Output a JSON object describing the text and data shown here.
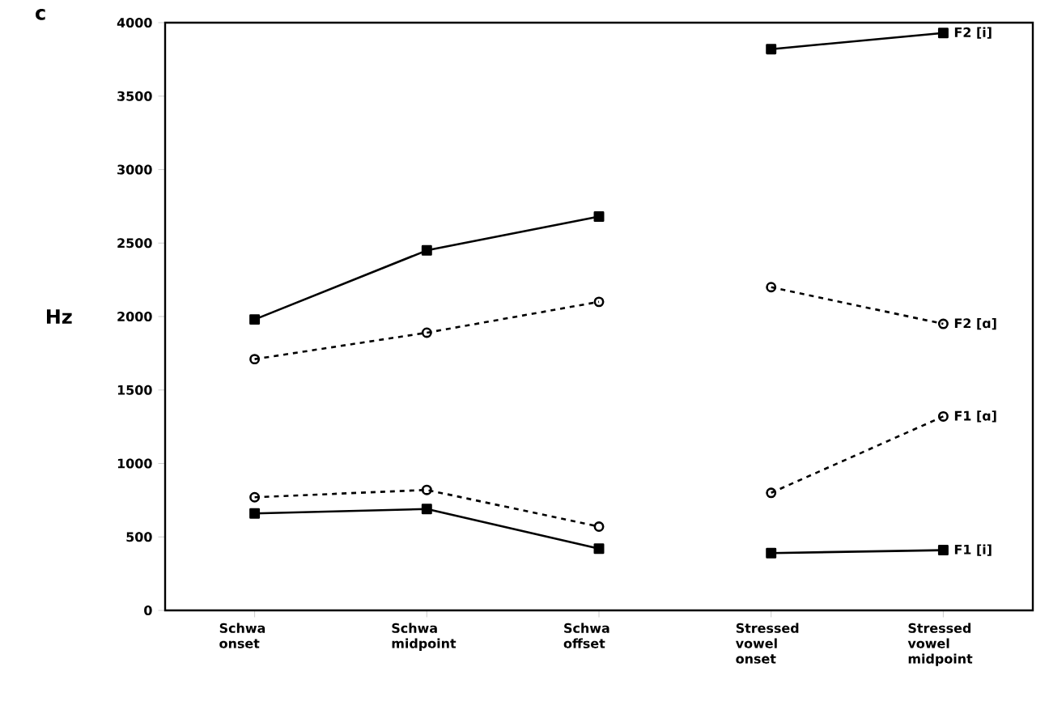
{
  "chart_data": {
    "type": "line",
    "categories": [
      "Schwa onset",
      "Schwa midpoint",
      "Schwa offset",
      "Stressed vowel onset",
      "Stressed vowel midpoint"
    ],
    "ylabel": "Hz",
    "annotations": [
      "c"
    ],
    "ylim": [
      0,
      4000
    ],
    "yticks": [
      0,
      500,
      1000,
      1500,
      2000,
      2500,
      3000,
      3500,
      4000
    ],
    "grid": false,
    "series": [
      {
        "color": "#000000",
        "marker": "square",
        "line_style": "solid",
        "values": [
          1980,
          2450,
          2680,
          null,
          null
        ]
      },
      {
        "name": "F2 [i]",
        "color": "#000000",
        "marker": "square",
        "line_style": "solid",
        "values": [
          null,
          null,
          null,
          3820,
          3930
        ]
      },
      {
        "color": "#000000",
        "marker": "circle",
        "line_style": "dashed",
        "values": [
          1710,
          1890,
          2100,
          null,
          null
        ]
      },
      {
        "name": "F2 [ɑ]",
        "color": "#000000",
        "marker": "circle",
        "line_style": "dashed",
        "values": [
          null,
          null,
          null,
          2200,
          1950
        ]
      },
      {
        "color": "#000000",
        "marker": "circle",
        "line_style": "dashed",
        "values": [
          770,
          820,
          570,
          null,
          null
        ]
      },
      {
        "name": "F1 [ɑ]",
        "color": "#000000",
        "marker": "circle",
        "line_style": "dashed",
        "values": [
          null,
          null,
          null,
          800,
          1320
        ]
      },
      {
        "color": "#000000",
        "marker": "square",
        "line_style": "solid",
        "values": [
          660,
          690,
          420,
          null,
          null
        ]
      },
      {
        "name": "F1 [i]",
        "color": "#000000",
        "marker": "square",
        "line_style": "solid",
        "values": [
          null,
          null,
          null,
          390,
          410
        ]
      }
    ]
  }
}
